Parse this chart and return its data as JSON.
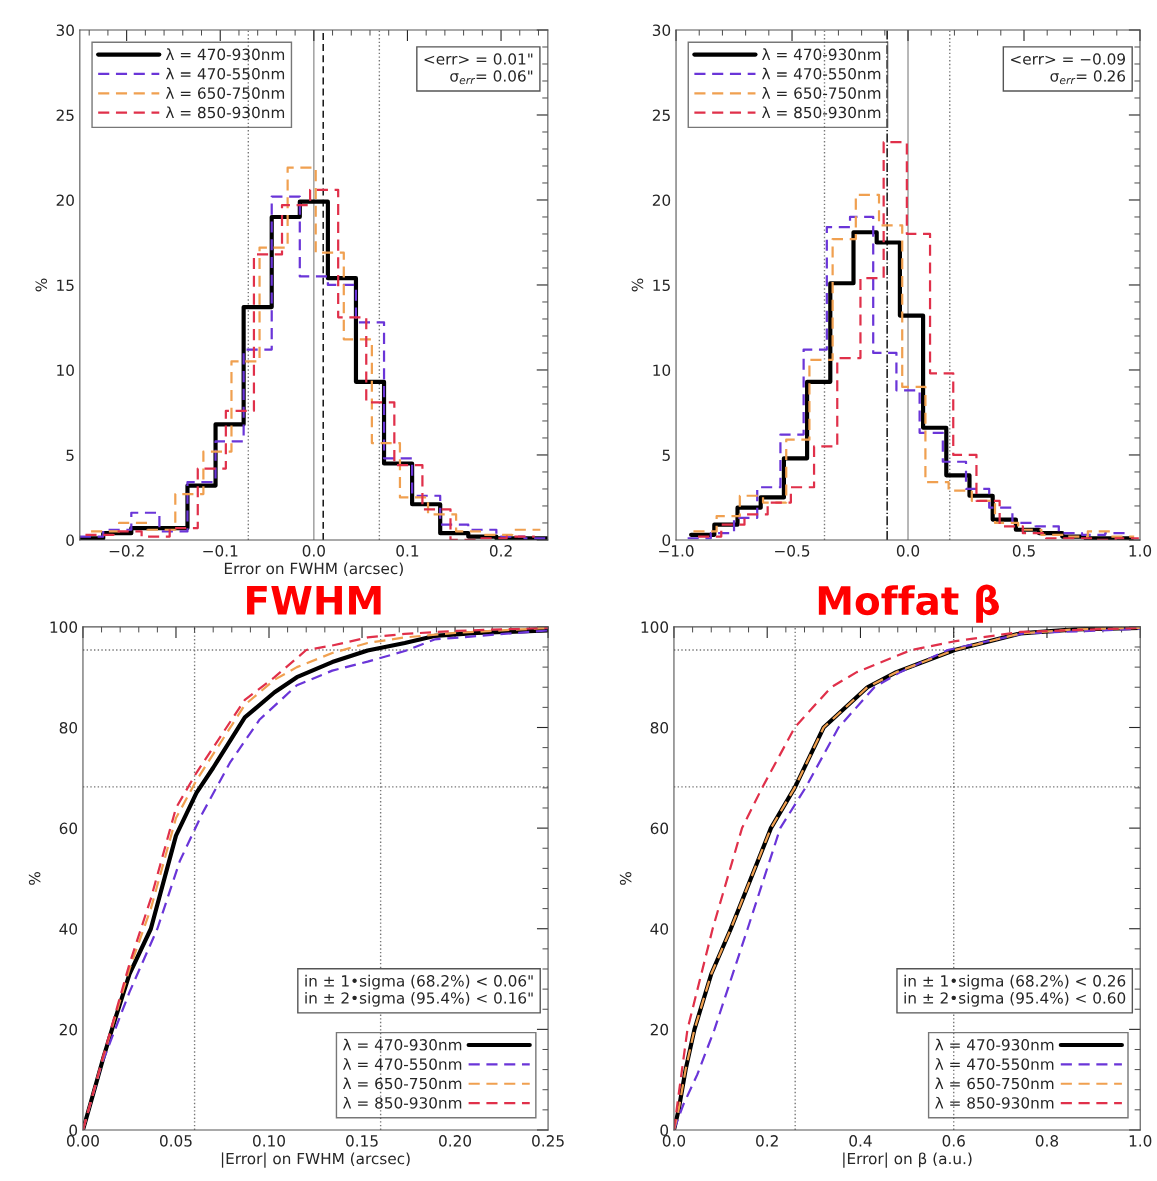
{
  "chart_data": [
    {
      "type": "step",
      "xlabel": "Error on FWHM (arcsec)",
      "ylabel": "%",
      "xlim": [
        -0.25,
        0.25
      ],
      "xticks": [
        {
          "value": -0.2,
          "label": "−0.2"
        },
        {
          "value": -0.1,
          "label": "−0.1"
        },
        {
          "value": 0,
          "label": "0.0"
        },
        0.1,
        0.2
      ],
      "ylim": [
        0,
        30
      ],
      "yticks": [
        0,
        5,
        10,
        15,
        20,
        25,
        30
      ],
      "legend": "top left",
      "grid": false,
      "series": [
        {
          "name": "λ = 470-930nm",
          "color": "#000000",
          "line_style": "solid",
          "x": [
            -0.25,
            -0.225,
            -0.195,
            -0.165,
            -0.135,
            -0.105,
            -0.075,
            -0.045,
            -0.015,
            0.015,
            0.045,
            0.075,
            0.105,
            0.135,
            0.165,
            0.195,
            0.225,
            0.25
          ],
          "values": [
            0.1,
            0.4,
            0.7,
            0.7,
            3.2,
            6.8,
            13.7,
            19.0,
            19.9,
            15.4,
            9.3,
            4.5,
            2.1,
            0.4,
            0.2,
            0.1,
            0.1,
            0.1
          ]
        },
        {
          "name": "λ = 470-550nm",
          "color": "#6a35d8",
          "line_style": "dashed",
          "x": [
            -0.25,
            -0.225,
            -0.195,
            -0.165,
            -0.135,
            -0.105,
            -0.075,
            -0.045,
            -0.015,
            0.015,
            0.045,
            0.075,
            0.105,
            0.135,
            0.165,
            0.195,
            0.225,
            0.25
          ],
          "values": [
            0.2,
            0.6,
            1.6,
            0.5,
            3.4,
            5.8,
            11.2,
            20.2,
            15.5,
            15.0,
            12.8,
            4.8,
            2.6,
            0.9,
            0.6,
            0.2,
            0.1,
            0.1
          ]
        },
        {
          "name": "λ = 650-750nm",
          "color": "#f0a050",
          "line_style": "dashed",
          "x": [
            -0.238,
            -0.208,
            -0.178,
            -0.148,
            -0.118,
            -0.088,
            -0.058,
            -0.028,
            0.002,
            0.032,
            0.062,
            0.092,
            0.122,
            0.152,
            0.182,
            0.212,
            0.242
          ],
          "values": [
            0.5,
            1.0,
            0.6,
            2.7,
            5.2,
            10.5,
            17.2,
            21.9,
            16.9,
            11.8,
            5.7,
            2.5,
            1.5,
            0.5,
            0.3,
            0.6,
            0.6
          ]
        },
        {
          "name": "λ = 850-930nm",
          "color": "#e0304a",
          "line_style": "dashed",
          "x": [
            -0.244,
            -0.214,
            -0.184,
            -0.154,
            -0.124,
            -0.094,
            -0.064,
            -0.034,
            -0.004,
            0.026,
            0.056,
            0.086,
            0.116,
            0.146,
            0.176,
            0.206,
            0.236
          ],
          "values": [
            0.3,
            0.5,
            0.2,
            0.7,
            4.2,
            7.6,
            16.8,
            19.7,
            20.6,
            13.1,
            8.1,
            4.4,
            1.8,
            0.0,
            0.1,
            0.2,
            0.2
          ]
        }
      ],
      "ref_lines": [
        {
          "axis": "x",
          "value": 0.0,
          "color": "#999999",
          "line_style": "solid"
        },
        {
          "axis": "x",
          "value": 0.01,
          "color": "#000000",
          "line_style": "dashed"
        },
        {
          "axis": "x",
          "value": -0.07,
          "color": "#777777",
          "line_style": "dotted"
        },
        {
          "axis": "x",
          "value": 0.07,
          "color": "#777777",
          "line_style": "dotted"
        }
      ],
      "annotations": [
        "<err> = 0.01\"\n   σ$_{err}$= 0.06\"",
        "FWHM"
      ]
    },
    {
      "type": "step",
      "ylabel": "%",
      "xlim": [
        -1.0,
        1.0
      ],
      "xticks": [
        {
          "value": -1.0,
          "label": "−1.0"
        },
        {
          "value": -0.5,
          "label": "−0.5"
        },
        {
          "value": 0,
          "label": "0.0"
        },
        0.5,
        {
          "value": 1,
          "label": "1.0"
        }
      ],
      "ylim": [
        0,
        30
      ],
      "yticks": [
        0,
        5,
        10,
        15,
        20,
        25,
        30
      ],
      "legend": "top left",
      "grid": false,
      "series": [
        {
          "name": "λ = 470-930nm",
          "color": "#000000",
          "line_style": "solid",
          "x": [
            -0.935,
            -0.835,
            -0.735,
            -0.635,
            -0.535,
            -0.435,
            -0.335,
            -0.235,
            -0.135,
            -0.035,
            0.065,
            0.165,
            0.265,
            0.365,
            0.465,
            0.565,
            0.665,
            0.765,
            0.865,
            0.965
          ],
          "values": [
            0.3,
            0.9,
            1.9,
            2.5,
            4.8,
            9.3,
            15.1,
            18.1,
            17.5,
            13.2,
            6.6,
            3.8,
            2.6,
            1.2,
            0.6,
            0.4,
            0.2,
            0.1,
            0.1,
            0.1
          ]
        },
        {
          "name": "λ = 470-550nm",
          "color": "#6a35d8",
          "line_style": "dashed",
          "x": [
            -0.95,
            -0.85,
            -0.75,
            -0.65,
            -0.55,
            -0.45,
            -0.35,
            -0.25,
            -0.15,
            -0.05,
            0.05,
            0.15,
            0.25,
            0.35,
            0.45,
            0.55,
            0.65,
            0.75,
            0.85,
            0.95
          ],
          "values": [
            0.1,
            0.4,
            1.3,
            3.1,
            6.2,
            11.2,
            18.4,
            19.0,
            11.0,
            8.8,
            6.3,
            4.6,
            3.0,
            1.9,
            1.0,
            0.8,
            0.4,
            0.3,
            0.4,
            0.4
          ]
        },
        {
          "name": "λ = 650-750nm",
          "color": "#f0a050",
          "line_style": "dashed",
          "x": [
            -0.925,
            -0.825,
            -0.725,
            -0.625,
            -0.525,
            -0.425,
            -0.325,
            -0.225,
            -0.125,
            -0.025,
            0.075,
            0.175,
            0.275,
            0.375,
            0.475,
            0.575,
            0.675,
            0.775,
            0.875,
            0.975
          ],
          "values": [
            0.5,
            1.4,
            2.6,
            2.2,
            5.9,
            10.6,
            17.7,
            20.3,
            18.5,
            9.0,
            3.4,
            2.9,
            2.3,
            1.0,
            0.6,
            0.3,
            0.2,
            0.5,
            0.2,
            0.2
          ]
        },
        {
          "name": "λ = 850-930nm",
          "color": "#e0304a",
          "line_style": "dashed",
          "x": [
            -0.905,
            -0.805,
            -0.705,
            -0.605,
            -0.505,
            -0.405,
            -0.305,
            -0.205,
            -0.105,
            -0.005,
            0.095,
            0.195,
            0.295,
            0.395,
            0.495,
            0.595,
            0.695,
            0.795,
            0.895,
            0.995
          ],
          "values": [
            0.2,
            0.9,
            1.5,
            2.2,
            3.1,
            5.5,
            10.7,
            15.4,
            23.4,
            18.0,
            9.8,
            5.0,
            2.3,
            0.8,
            0.4,
            0.1,
            0.1,
            0.0,
            0.1,
            0.1
          ]
        }
      ],
      "ref_lines": [
        {
          "axis": "x",
          "value": 0.0,
          "color": "#999999",
          "line_style": "solid"
        },
        {
          "axis": "x",
          "value": -0.09,
          "color": "#000000",
          "line_style": "dashdot"
        },
        {
          "axis": "x",
          "value": -0.36,
          "color": "#777777",
          "line_style": "dotted"
        },
        {
          "axis": "x",
          "value": 0.18,
          "color": "#777777",
          "line_style": "dotted"
        }
      ],
      "annotations": [
        "<err> = −0.09\n   σ$_{err}$= 0.26",
        "Moffat β"
      ]
    },
    {
      "type": "line",
      "xlabel": "|Error| on FWHM (arcsec)",
      "ylabel": "%",
      "xlim": [
        0.0,
        0.25
      ],
      "xticks": [
        {
          "value": 0.0,
          "label": "0.00"
        },
        {
          "value": 0.05,
          "label": "0.05"
        },
        {
          "value": 0.1,
          "label": "0.10"
        },
        {
          "value": 0.15,
          "label": "0.15"
        },
        {
          "value": 0.2,
          "label": "0.20"
        },
        {
          "value": 0.25,
          "label": "0.25"
        }
      ],
      "ylim": [
        0,
        100
      ],
      "yticks": [
        0,
        20,
        40,
        60,
        80,
        100
      ],
      "legend": "bottom right",
      "grid": false,
      "series": [
        {
          "name": "λ = 470-930nm",
          "color": "#000000",
          "line_style": "solid",
          "x": [
            0,
            0.005,
            0.011,
            0.017,
            0.025,
            0.0365,
            0.05,
            0.061,
            0.07,
            0.087,
            0.103,
            0.115,
            0.134,
            0.153,
            0.173,
            0.189,
            0.212,
            0.25
          ],
          "values": [
            0,
            6.5,
            14.4,
            21.7,
            31,
            40,
            58.5,
            67,
            72,
            82,
            87,
            90,
            93,
            95.3,
            96.8,
            98.2,
            98.8,
            99.3
          ]
        },
        {
          "name": "λ = 470-550nm",
          "color": "#6a35d8",
          "line_style": "dashed",
          "x": [
            0,
            0.01,
            0.025,
            0.04,
            0.052,
            0.064,
            0.079,
            0.095,
            0.115,
            0.134,
            0.153,
            0.173,
            0.189,
            0.25
          ],
          "values": [
            0,
            13,
            27.4,
            40,
            53.4,
            62.8,
            73,
            81.6,
            88.4,
            91.3,
            93.1,
            95.2,
            97.5,
            99.3
          ]
        },
        {
          "name": "λ = 650-750nm",
          "color": "#f0a050",
          "line_style": "dashed",
          "x": [
            0,
            0.011,
            0.025,
            0.0365,
            0.05,
            0.061,
            0.087,
            0.103,
            0.115,
            0.134,
            0.153,
            0.173,
            0.2,
            0.25
          ],
          "values": [
            0,
            14.6,
            32,
            44,
            62,
            69.5,
            84.5,
            89.5,
            92,
            94.8,
            96.8,
            97.9,
            98.8,
            99.8
          ]
        },
        {
          "name": "λ = 850-930nm",
          "color": "#e0304a",
          "line_style": "dashed",
          "x": [
            0,
            0.011,
            0.025,
            0.0365,
            0.05,
            0.061,
            0.087,
            0.103,
            0.12,
            0.134,
            0.153,
            0.173,
            0.2,
            0.25
          ],
          "values": [
            0,
            14.8,
            33,
            46,
            64,
            71,
            85.5,
            90,
            95.4,
            96.3,
            97.9,
            98.6,
            99.2,
            99.8
          ]
        }
      ],
      "ref_lines": [
        {
          "axis": "y",
          "value": 68.2,
          "color": "#777777",
          "line_style": "dotted"
        },
        {
          "axis": "y",
          "value": 95.4,
          "color": "#777777",
          "line_style": "dotted"
        },
        {
          "axis": "x",
          "value": 0.06,
          "color": "#777777",
          "line_style": "dotted"
        },
        {
          "axis": "x",
          "value": 0.16,
          "color": "#777777",
          "line_style": "dotted"
        }
      ],
      "annotations": [
        "in ± 1•sigma (68.2%) < 0.06\"\nin ± 2•sigma (95.4%) < 0.16\""
      ]
    },
    {
      "type": "line",
      "xlabel": "|Error| on β (a.u.)",
      "ylabel": "%",
      "xlim": [
        0.0,
        1.0
      ],
      "xticks": [
        {
          "value": 0,
          "label": "0.0"
        },
        0.2,
        0.4,
        0.6,
        0.8,
        {
          "value": 1,
          "label": "1.0"
        }
      ],
      "ylim": [
        0,
        100
      ],
      "yticks": [
        0,
        20,
        40,
        60,
        80,
        100
      ],
      "legend": "bottom right",
      "grid": false,
      "series": [
        {
          "name": "λ = 470-930nm",
          "color": "#000000",
          "line_style": "solid",
          "x": [
            0,
            0.01,
            0.025,
            0.044,
            0.08,
            0.122,
            0.165,
            0.208,
            0.26,
            0.321,
            0.415,
            0.477,
            0.602,
            0.743,
            0.86,
            1.0
          ],
          "values": [
            0,
            4,
            12,
            20,
            31,
            40,
            50,
            60,
            68.2,
            80,
            88,
            91,
            95.4,
            98.7,
            99.5,
            99.8
          ]
        },
        {
          "name": "λ = 470-550nm",
          "color": "#6a35d8",
          "line_style": "dashed",
          "x": [
            0,
            0.02,
            0.05,
            0.087,
            0.158,
            0.228,
            0.282,
            0.353,
            0.43,
            0.485,
            0.587,
            0.75,
            1.0
          ],
          "values": [
            0,
            5,
            11,
            20,
            40,
            60,
            68,
            80,
            88,
            91,
            95.4,
            98.7,
            99.6
          ]
        },
        {
          "name": "λ = 650-750nm",
          "color": "#f0a050",
          "line_style": "dashed",
          "x": [
            0,
            0.01,
            0.025,
            0.044,
            0.08,
            0.122,
            0.165,
            0.208,
            0.26,
            0.321,
            0.415,
            0.477,
            0.602,
            0.743,
            0.86,
            1.0
          ],
          "values": [
            0,
            4,
            12,
            20,
            31,
            40,
            50,
            60,
            68.2,
            80,
            88,
            91,
            95.4,
            98.7,
            99.5,
            99.8
          ]
        },
        {
          "name": "λ = 850-930nm",
          "color": "#e0304a",
          "line_style": "dashed",
          "x": [
            0,
            0.01,
            0.029,
            0.083,
            0.146,
            0.189,
            0.259,
            0.337,
            0.392,
            0.509,
            0.6,
            0.743,
            1.0
          ],
          "values": [
            0,
            7,
            20,
            40,
            60,
            68,
            80,
            88,
            91,
            95.4,
            97.1,
            99,
            99.8
          ]
        }
      ],
      "ref_lines": [
        {
          "axis": "y",
          "value": 68.2,
          "color": "#777777",
          "line_style": "dotted"
        },
        {
          "axis": "y",
          "value": 95.4,
          "color": "#777777",
          "line_style": "dotted"
        },
        {
          "axis": "x",
          "value": 0.26,
          "color": "#777777",
          "line_style": "dotted"
        },
        {
          "axis": "x",
          "value": 0.6,
          "color": "#777777",
          "line_style": "dotted"
        }
      ],
      "annotations": [
        "in ± 1•sigma (68.2%) < 0.26\nin ± 2•sigma (95.4%) < 0.60"
      ]
    }
  ]
}
